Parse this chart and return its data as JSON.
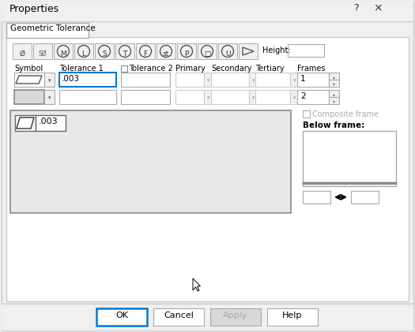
{
  "title": "Properties",
  "tab_label": "Geometric Tolerance",
  "bg_color": "#f0f0f0",
  "white": "#ffffff",
  "border_color": "#aaaaaa",
  "dark_border": "#888888",
  "text_color": "#000000",
  "disabled_text": "#aaaaaa",
  "highlight_border": "#0078d7",
  "icon_labels": [
    "Ø",
    "SØ",
    "M",
    "L",
    "S",
    "T",
    "F",
    "st",
    "P",
    "□",
    "U",
    "▷"
  ],
  "height_label": "Height:",
  "col_labels": [
    "Symbol",
    "Tolerance 1",
    "Tolerance 2",
    "Primary",
    "Secondary",
    "Tertiary",
    "Frames"
  ],
  "row1_tol1": ".003",
  "row1_frames": "1",
  "row2_frames": "2",
  "preview_tol": ".003",
  "composite_label": "Composite frame",
  "below_label": "Below frame:",
  "btn_labels": [
    "OK",
    "Cancel",
    "Apply",
    "Help"
  ],
  "fig_w": 5.25,
  "fig_h": 4.21,
  "dpi": 100
}
